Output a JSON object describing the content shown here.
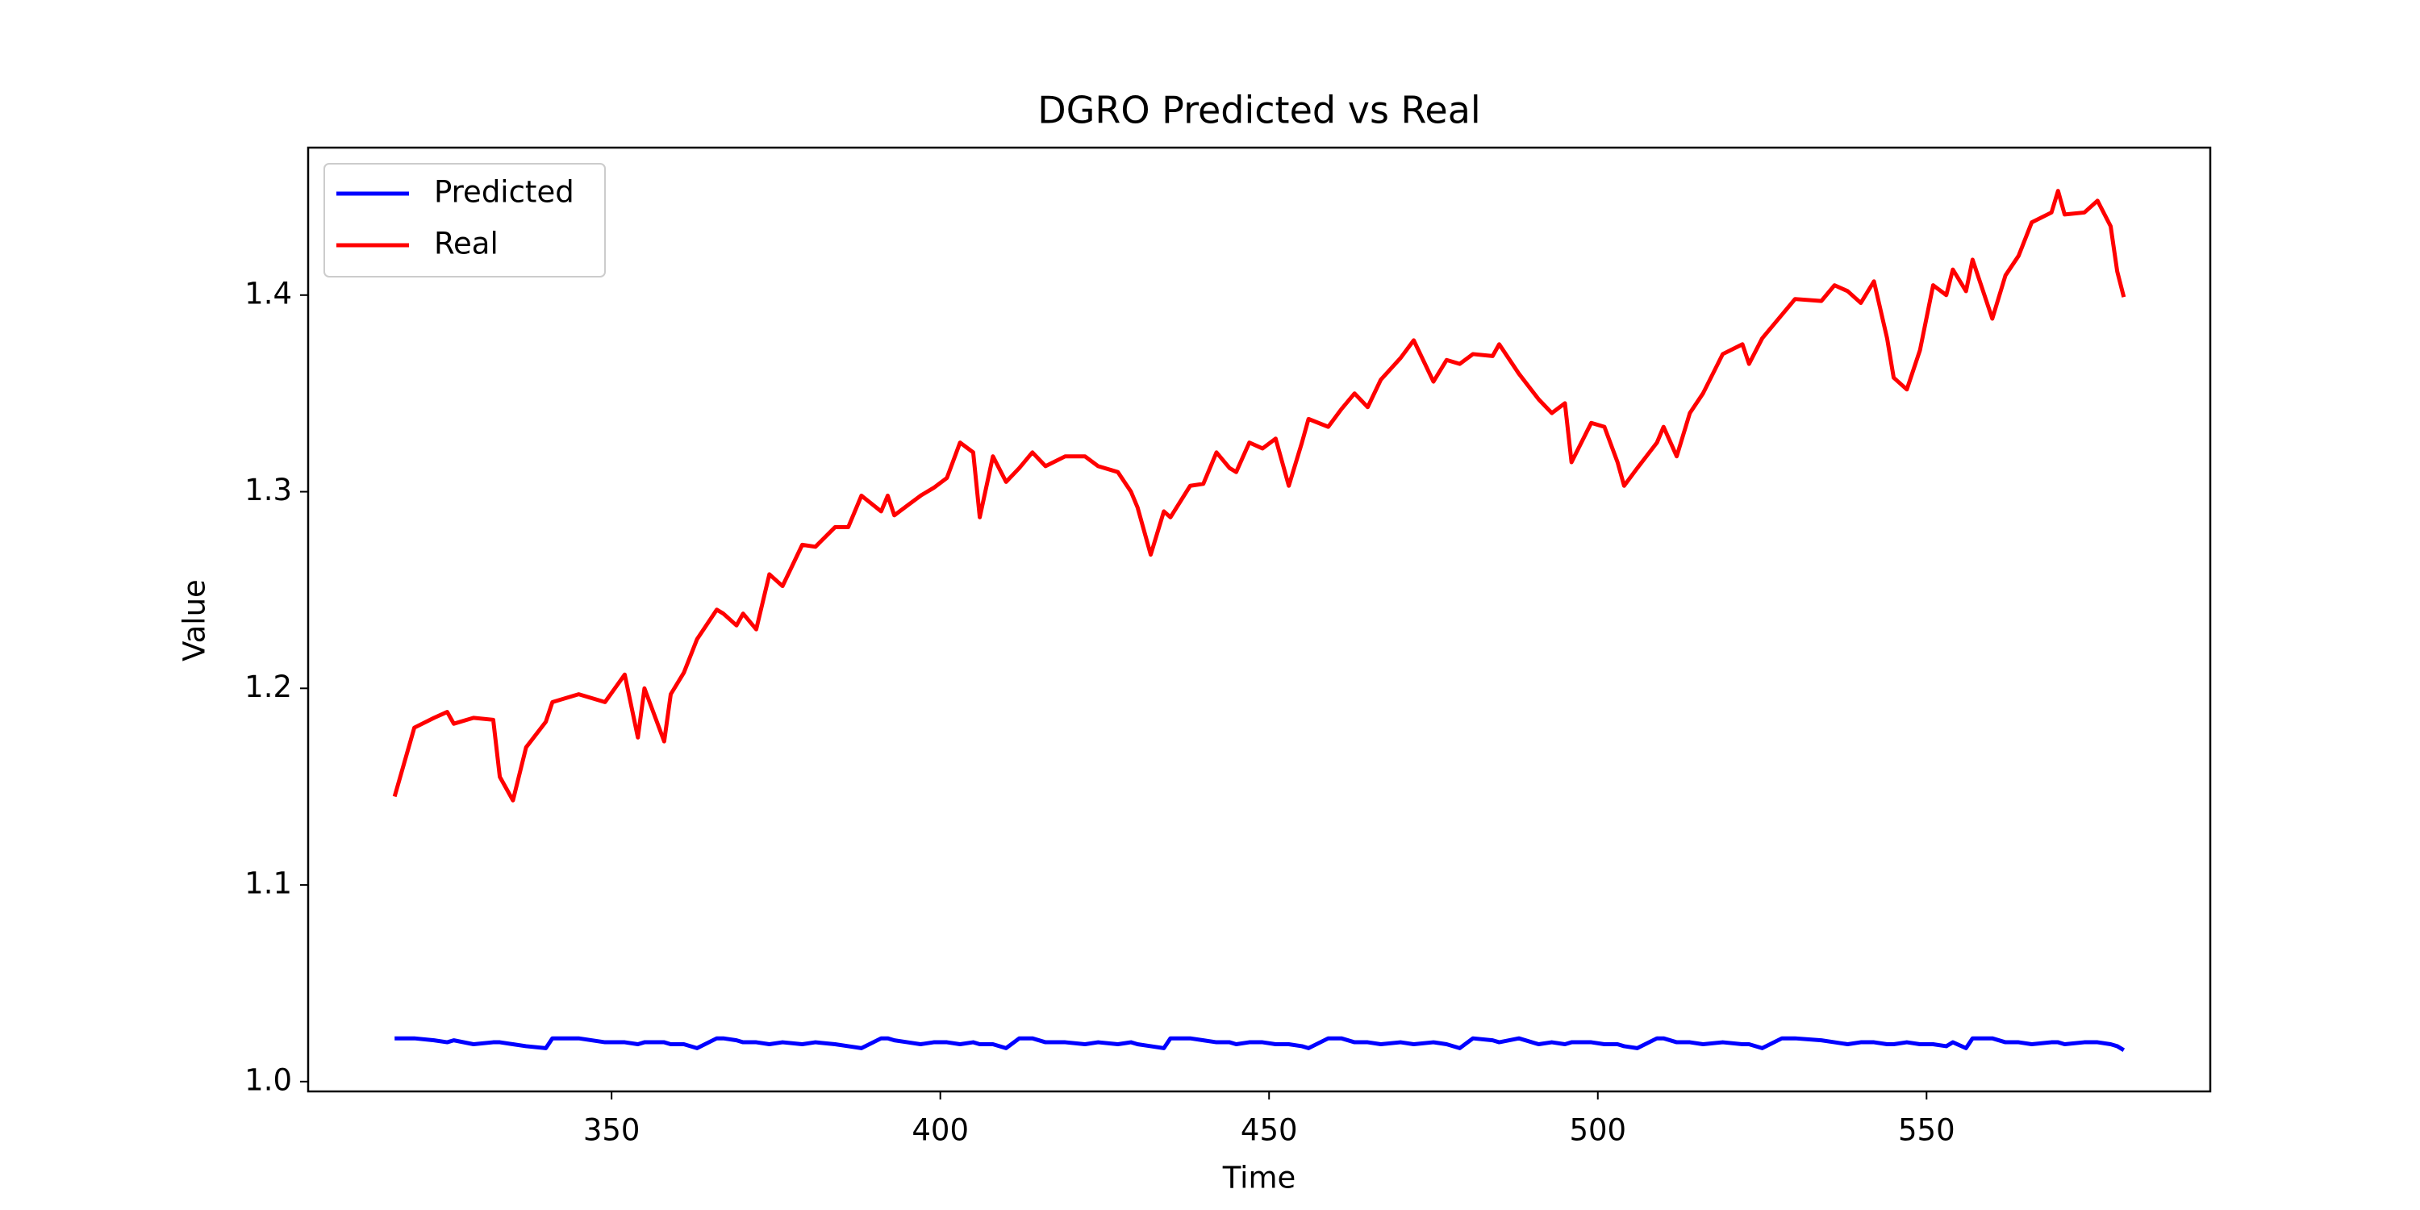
{
  "chart_data": {
    "type": "line",
    "title": "DGRO Predicted vs Real",
    "x_label": "Time",
    "y_label": "Value",
    "x": [
      317,
      320,
      323,
      325,
      326,
      329,
      332,
      333,
      335,
      337,
      340,
      341,
      345,
      349,
      352,
      354,
      355,
      358,
      359,
      361,
      363,
      366,
      367,
      369,
      370,
      372,
      374,
      376,
      379,
      381,
      384,
      386,
      388,
      391,
      392,
      393,
      395,
      397,
      399,
      401,
      403,
      405,
      406,
      408,
      410,
      412,
      414,
      416,
      419,
      422,
      424,
      427,
      429,
      430,
      432,
      434,
      435,
      438,
      440,
      442,
      444,
      445,
      447,
      449,
      451,
      453,
      455,
      456,
      459,
      461,
      463,
      465,
      467,
      470,
      472,
      475,
      477,
      479,
      481,
      484,
      485,
      488,
      491,
      493,
      495,
      496,
      499,
      501,
      503,
      504,
      506,
      509,
      510,
      512,
      514,
      516,
      519,
      522,
      523,
      525,
      528,
      530,
      534,
      536,
      538,
      540,
      542,
      544,
      545,
      547,
      549,
      551,
      553,
      554,
      556,
      557,
      560,
      562,
      564,
      566,
      569,
      570,
      571,
      574,
      576,
      578,
      579,
      580
    ],
    "series": [
      {
        "name": "Predicted",
        "color": "#0000ff",
        "values": [
          1.022,
          1.022,
          1.021,
          1.02,
          1.021,
          1.019,
          1.02,
          1.02,
          1.019,
          1.018,
          1.017,
          1.022,
          1.022,
          1.02,
          1.02,
          1.019,
          1.02,
          1.02,
          1.019,
          1.019,
          1.017,
          1.022,
          1.022,
          1.021,
          1.02,
          1.02,
          1.019,
          1.02,
          1.019,
          1.02,
          1.019,
          1.018,
          1.017,
          1.022,
          1.022,
          1.021,
          1.02,
          1.019,
          1.02,
          1.02,
          1.019,
          1.02,
          1.019,
          1.019,
          1.017,
          1.022,
          1.022,
          1.02,
          1.02,
          1.019,
          1.02,
          1.019,
          1.02,
          1.019,
          1.018,
          1.017,
          1.022,
          1.022,
          1.021,
          1.02,
          1.02,
          1.019,
          1.02,
          1.02,
          1.019,
          1.019,
          1.018,
          1.017,
          1.022,
          1.022,
          1.02,
          1.02,
          1.019,
          1.02,
          1.019,
          1.02,
          1.019,
          1.017,
          1.022,
          1.021,
          1.02,
          1.022,
          1.019,
          1.02,
          1.019,
          1.02,
          1.02,
          1.019,
          1.019,
          1.018,
          1.017,
          1.022,
          1.022,
          1.02,
          1.02,
          1.019,
          1.02,
          1.019,
          1.019,
          1.017,
          1.022,
          1.022,
          1.021,
          1.02,
          1.019,
          1.02,
          1.02,
          1.019,
          1.019,
          1.02,
          1.019,
          1.019,
          1.018,
          1.02,
          1.017,
          1.022,
          1.022,
          1.02,
          1.02,
          1.019,
          1.02,
          1.02,
          1.019,
          1.02,
          1.02,
          1.019,
          1.018,
          1.016
        ]
      },
      {
        "name": "Real",
        "color": "#ff0000",
        "values": [
          1.145,
          1.18,
          1.185,
          1.188,
          1.182,
          1.185,
          1.184,
          1.155,
          1.143,
          1.17,
          1.183,
          1.193,
          1.197,
          1.193,
          1.207,
          1.175,
          1.2,
          1.173,
          1.197,
          1.208,
          1.225,
          1.24,
          1.238,
          1.232,
          1.238,
          1.23,
          1.258,
          1.252,
          1.273,
          1.272,
          1.282,
          1.282,
          1.298,
          1.29,
          1.298,
          1.288,
          1.293,
          1.298,
          1.302,
          1.307,
          1.325,
          1.32,
          1.287,
          1.318,
          1.305,
          1.312,
          1.32,
          1.313,
          1.318,
          1.318,
          1.313,
          1.31,
          1.3,
          1.292,
          1.268,
          1.29,
          1.287,
          1.303,
          1.304,
          1.32,
          1.312,
          1.31,
          1.325,
          1.322,
          1.327,
          1.303,
          1.325,
          1.337,
          1.333,
          1.342,
          1.35,
          1.343,
          1.357,
          1.368,
          1.377,
          1.356,
          1.367,
          1.365,
          1.37,
          1.369,
          1.375,
          1.36,
          1.347,
          1.34,
          1.345,
          1.315,
          1.335,
          1.333,
          1.315,
          1.303,
          1.312,
          1.325,
          1.333,
          1.318,
          1.34,
          1.35,
          1.37,
          1.375,
          1.365,
          1.378,
          1.39,
          1.398,
          1.397,
          1.405,
          1.402,
          1.396,
          1.407,
          1.378,
          1.358,
          1.352,
          1.372,
          1.405,
          1.4,
          1.413,
          1.402,
          1.418,
          1.388,
          1.41,
          1.42,
          1.437,
          1.442,
          1.453,
          1.441,
          1.442,
          1.448,
          1.435,
          1.412,
          1.399
        ]
      }
    ],
    "xlim": [
      303.85,
      593.15
    ],
    "xticks": [
      350,
      400,
      450,
      500,
      550
    ],
    "ylim": [
      0.995,
      1.475
    ],
    "yticks": [
      {
        "value": 1,
        "label": "1.0"
      },
      1.1,
      1.2,
      1.3,
      1.4
    ],
    "grid": false,
    "legend": "upper left"
  }
}
